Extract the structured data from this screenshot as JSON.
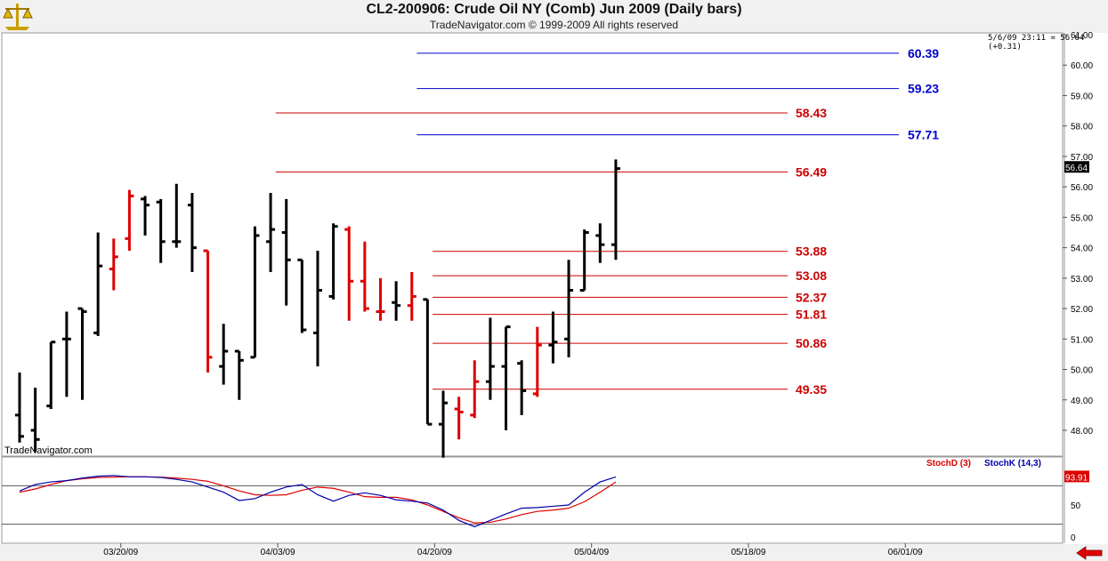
{
  "header": {
    "title": "CL2-200906:  Crude Oil NY (Comb) Jun 2009  (Daily bars)",
    "subtitle": "TradeNavigator.com © 1999-2009 All rights reserved"
  },
  "quote": "5/6/09 23:11 = 56.64 (+0.31)",
  "watermark": "TradeNavigator.com",
  "colors": {
    "bar": "#000000",
    "bar_highlight": "#dd0000",
    "level_red": "#cc0000",
    "level_blue": "#0000cc",
    "stochD": "#dd0000",
    "stochK": "#0000aa",
    "price_label_bg": "#000000"
  },
  "icons": {
    "logo": "scale-balance-icon",
    "nav": "red-left-arrow-icon"
  },
  "chart_data": [
    {
      "type": "ohlc",
      "x": [
        "03/12/09",
        "03/13/09",
        "03/16/09",
        "03/17/09",
        "03/18/09",
        "03/19/09",
        "03/20/09",
        "03/23/09",
        "03/24/09",
        "03/25/09",
        "03/26/09",
        "03/27/09",
        "03/30/09",
        "03/31/09",
        "04/01/09",
        "04/02/09",
        "04/03/09",
        "04/06/09",
        "04/07/09",
        "04/08/09",
        "04/09/09",
        "04/13/09",
        "04/14/09",
        "04/15/09",
        "04/16/09",
        "04/17/09",
        "04/20/09",
        "04/21/09",
        "04/22/09",
        "04/23/09",
        "04/24/09",
        "04/27/09",
        "04/28/09",
        "04/29/09",
        "04/30/09",
        "05/01/09",
        "05/04/09",
        "05/05/09",
        "05/06/09"
      ],
      "ohlc": [
        [
          48.5,
          49.9,
          47.6,
          47.8
        ],
        [
          48.0,
          49.4,
          47.3,
          47.7
        ],
        [
          48.8,
          50.9,
          48.7,
          50.9
        ],
        [
          51.0,
          51.9,
          49.1,
          51.0
        ],
        [
          52.0,
          52.0,
          49.0,
          51.9
        ],
        [
          51.2,
          54.5,
          51.1,
          53.4
        ],
        [
          53.3,
          54.3,
          52.6,
          53.7
        ],
        [
          54.3,
          55.9,
          53.9,
          55.7
        ],
        [
          55.6,
          55.7,
          54.4,
          55.4
        ],
        [
          55.5,
          55.6,
          53.5,
          54.2
        ],
        [
          54.2,
          56.1,
          54.0,
          54.2
        ],
        [
          55.4,
          55.8,
          53.2,
          54.0
        ],
        [
          53.9,
          53.9,
          49.9,
          50.4
        ],
        [
          50.1,
          51.5,
          49.5,
          50.6
        ],
        [
          50.6,
          50.6,
          49.0,
          50.3
        ],
        [
          50.4,
          54.7,
          50.4,
          54.4
        ],
        [
          54.2,
          55.8,
          53.2,
          54.6
        ],
        [
          54.5,
          55.6,
          52.1,
          53.6
        ],
        [
          53.6,
          53.6,
          51.2,
          51.3
        ],
        [
          51.2,
          53.9,
          50.1,
          52.6
        ],
        [
          52.4,
          54.8,
          52.3,
          54.7
        ],
        [
          54.6,
          54.7,
          51.6,
          52.9
        ],
        [
          52.9,
          54.2,
          51.9,
          52.0
        ],
        [
          51.9,
          53.0,
          51.6,
          51.9
        ],
        [
          52.2,
          52.9,
          51.6,
          52.1
        ],
        [
          52.1,
          53.2,
          51.6,
          52.4
        ],
        [
          52.3,
          52.3,
          48.2,
          48.2
        ],
        [
          48.2,
          49.3,
          47.1,
          48.9
        ],
        [
          48.7,
          49.1,
          47.7,
          48.6
        ],
        [
          48.5,
          50.3,
          48.4,
          49.6
        ],
        [
          49.6,
          51.7,
          49.0,
          50.1
        ],
        [
          50.1,
          51.4,
          48.0,
          51.4
        ],
        [
          50.2,
          50.3,
          48.5,
          49.3
        ],
        [
          49.2,
          51.4,
          49.1,
          50.8
        ],
        [
          50.8,
          51.9,
          50.2,
          50.9
        ],
        [
          51.0,
          53.6,
          50.4,
          52.6
        ],
        [
          52.6,
          54.6,
          52.6,
          54.5
        ],
        [
          54.4,
          54.8,
          53.5,
          54.1
        ],
        [
          54.1,
          56.9,
          53.6,
          56.6
        ]
      ],
      "highlight": [
        6,
        7,
        12,
        21,
        22,
        23,
        25,
        28,
        29,
        33
      ],
      "y_axis": {
        "min": 47.0,
        "max": 61.0,
        "ticks": [
          "48.00",
          "49.00",
          "50.00",
          "51.00",
          "52.00",
          "53.00",
          "54.00",
          "55.00",
          "56.00",
          "57.00",
          "58.00",
          "59.00",
          "60.00",
          "61.00"
        ]
      },
      "last_price_label": "56.64",
      "x_axis_labels": [
        {
          "label": "03/20/09",
          "after_index": 6
        },
        {
          "label": "04/03/09",
          "after_index": 16
        },
        {
          "label": "04/20/09",
          "after_index": 26
        },
        {
          "label": "05/04/09",
          "after_index": 36
        },
        {
          "label": "05/18/09",
          "after_index": 46
        },
        {
          "label": "06/01/09",
          "after_index": 56
        }
      ],
      "levels": [
        {
          "value": 60.39,
          "label": "60.39",
          "color": "blue",
          "from_index": 26
        },
        {
          "value": 59.23,
          "label": "59.23",
          "color": "blue",
          "from_index": 26
        },
        {
          "value": 58.43,
          "label": "58.43",
          "color": "red",
          "from_index": 17
        },
        {
          "value": 57.71,
          "label": "57.71",
          "color": "blue",
          "from_index": 26
        },
        {
          "value": 56.49,
          "label": "56.49",
          "color": "red",
          "from_index": 17
        },
        {
          "value": 53.88,
          "label": "53.88",
          "color": "red",
          "from_index": 27
        },
        {
          "value": 53.08,
          "label": "53.08",
          "color": "red",
          "from_index": 27
        },
        {
          "value": 52.37,
          "label": "52.37",
          "color": "red",
          "from_index": 27
        },
        {
          "value": 51.81,
          "label": "51.81",
          "color": "red",
          "from_index": 27
        },
        {
          "value": 50.86,
          "label": "50.86",
          "color": "red",
          "from_index": 27
        },
        {
          "value": 49.35,
          "label": "49.35",
          "color": "red",
          "from_index": 27
        }
      ]
    },
    {
      "type": "line",
      "y_axis": {
        "min": 0,
        "max": 100,
        "ticks": [
          "0",
          "50"
        ],
        "reference_lines": [
          20,
          80
        ]
      },
      "legend": [
        {
          "name": "StochD (3)",
          "color": "red"
        },
        {
          "name": "StochK (14,3)",
          "color": "blue"
        }
      ],
      "last_value_label": "93.91",
      "series": [
        {
          "name": "StochD (3)",
          "values": [
            70,
            75,
            82,
            88,
            91,
            93,
            93.5,
            94,
            94,
            93.5,
            92,
            90,
            87,
            80,
            72,
            66,
            65,
            66,
            73,
            78,
            76,
            70,
            63,
            62,
            62,
            58,
            50,
            40,
            30,
            22,
            23,
            28,
            35,
            40,
            42,
            45,
            55,
            70,
            86
          ]
        },
        {
          "name": "StochK (14,3)",
          "values": [
            72,
            82,
            86,
            88,
            92,
            95,
            96,
            94,
            94,
            93,
            90,
            86,
            78,
            70,
            57,
            60,
            70,
            78,
            82,
            66,
            56,
            65,
            69,
            65,
            58,
            56,
            53,
            42,
            26,
            16,
            26,
            36,
            45,
            46,
            48,
            50,
            70,
            86,
            93.91
          ]
        }
      ]
    }
  ]
}
